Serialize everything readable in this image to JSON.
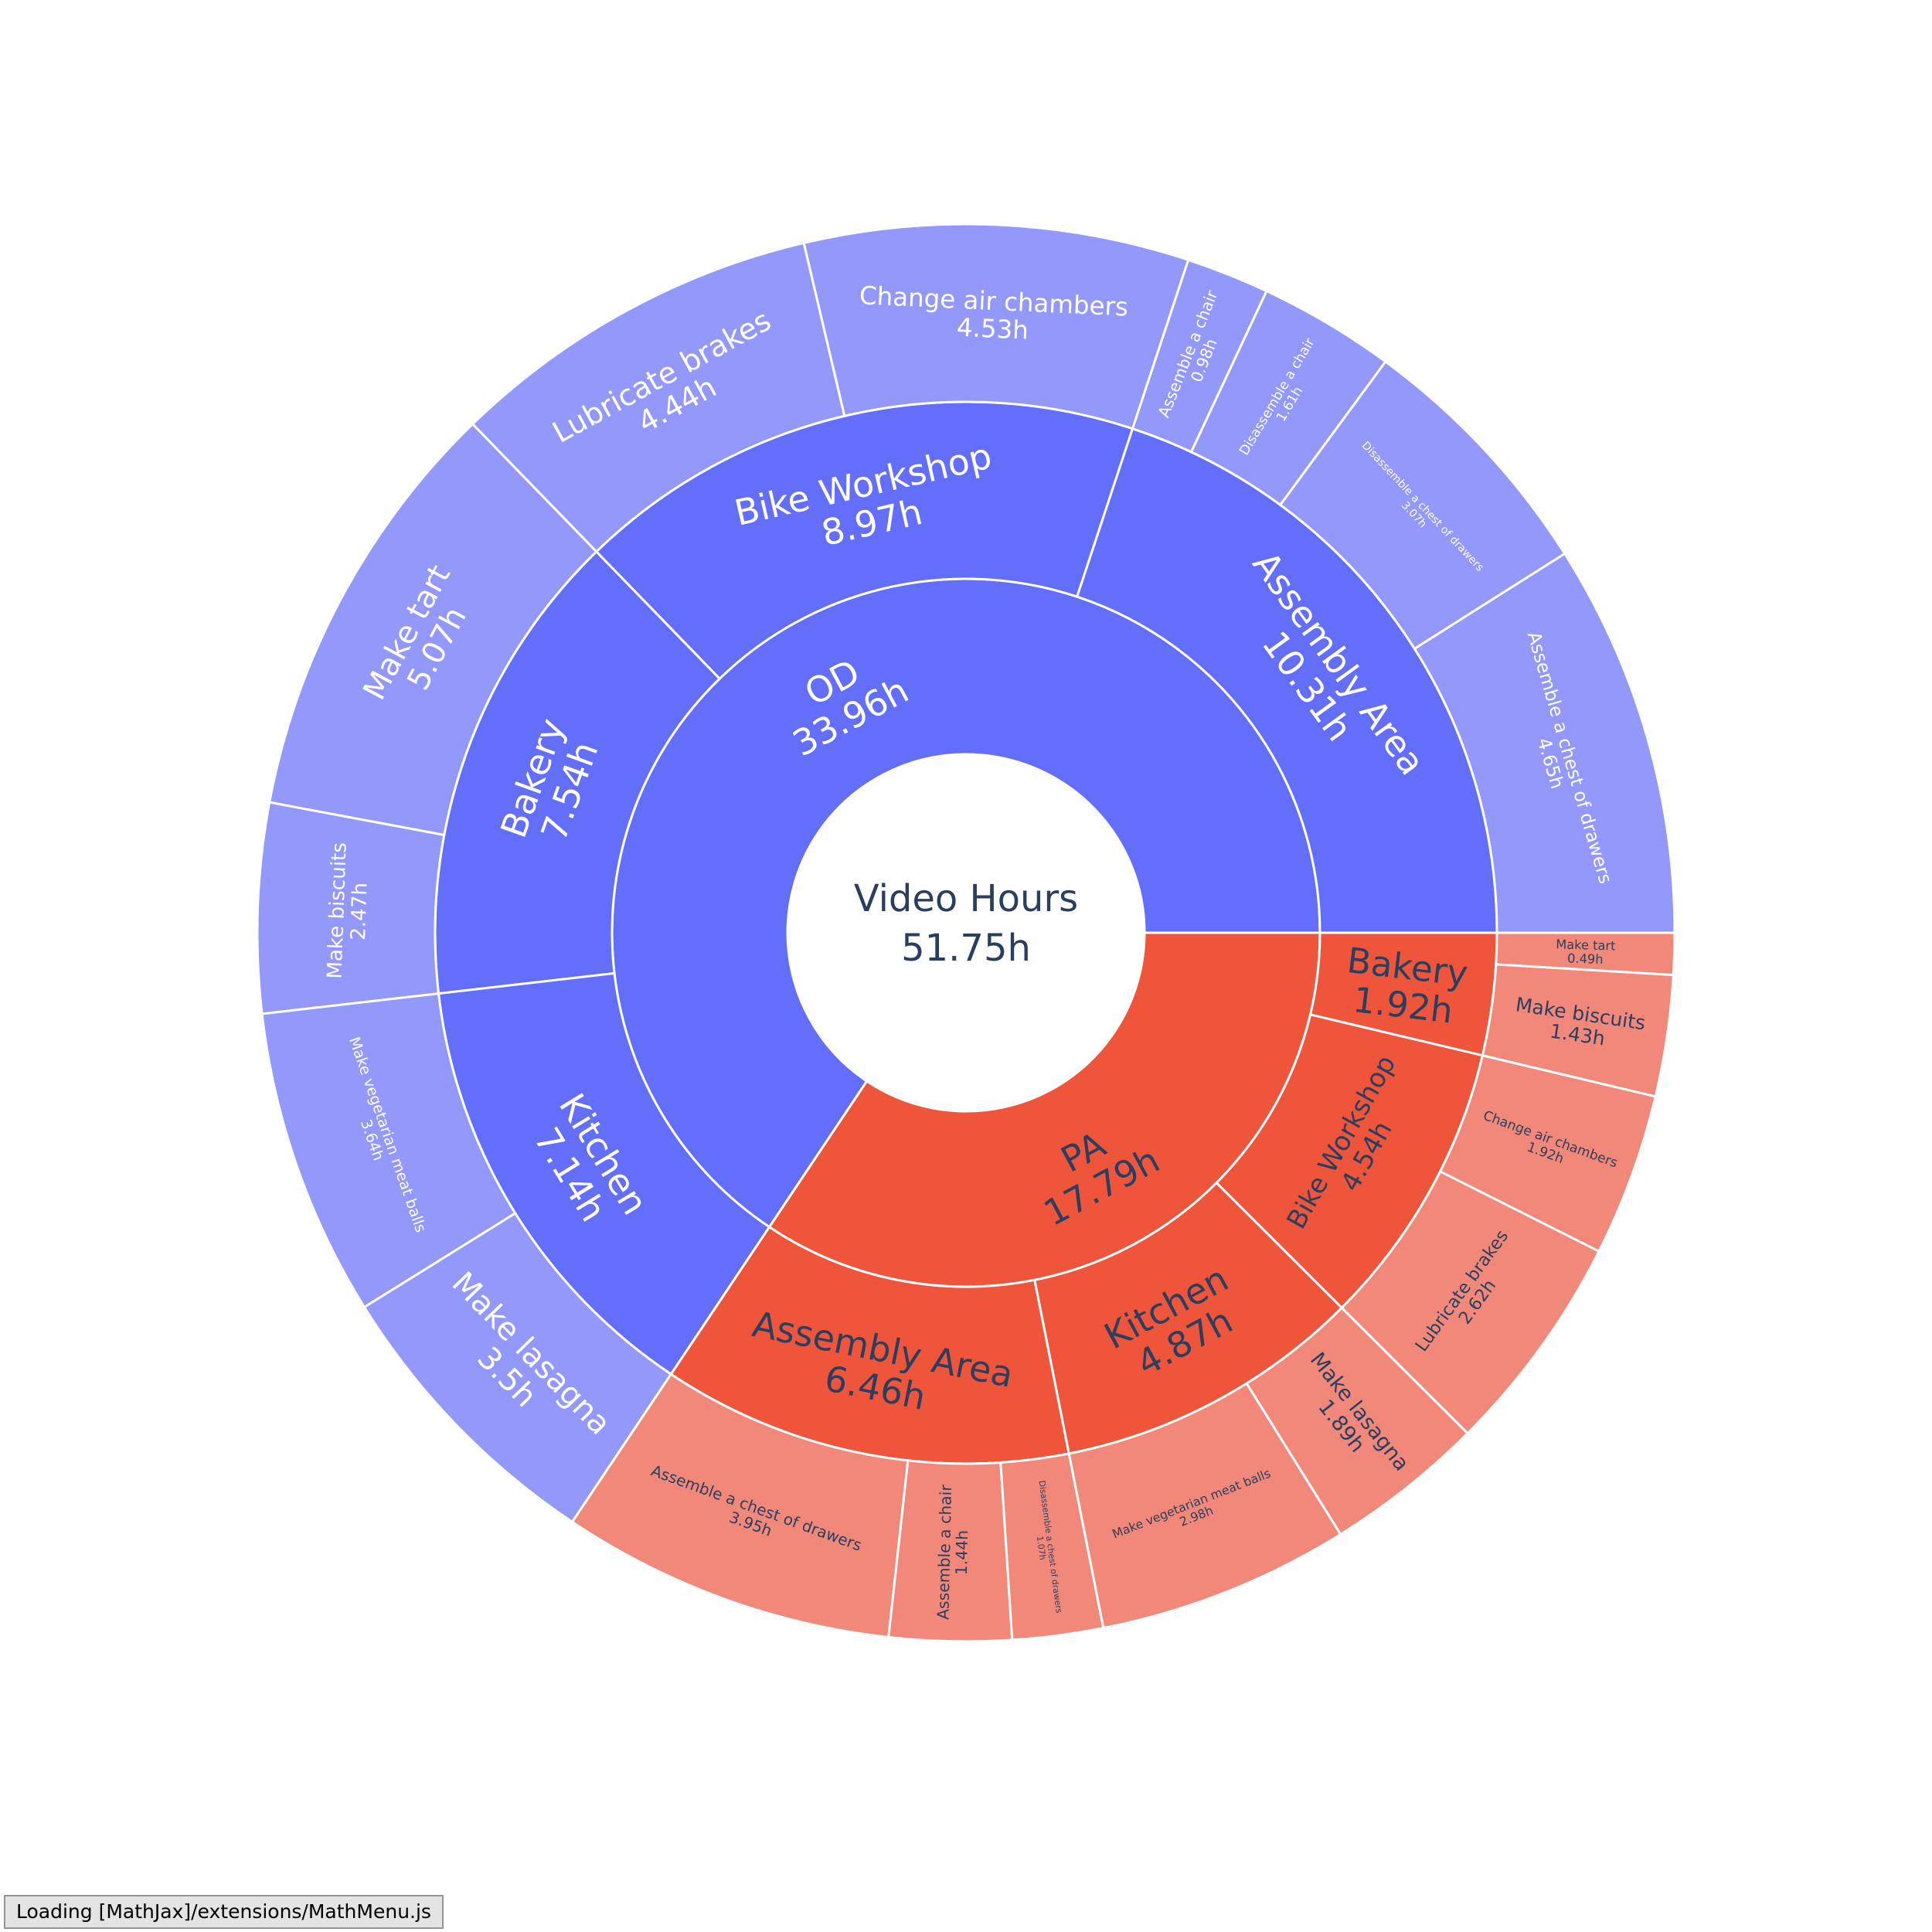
{
  "chart_data": {
    "type": "sunburst",
    "root": {
      "label": "Video Hours",
      "value": 51.75,
      "value_label": "51.75h",
      "children": [
        {
          "label": "OD",
          "value": 33.96,
          "value_label": "33.96h",
          "color": "#636efa",
          "leaf_color": "#9299fb",
          "text_color": "#ffffff",
          "children": [
            {
              "label": "Assembly Area",
              "value": 10.31,
              "value_label": "10.31h",
              "children": [
                {
                  "label": "Assemble a chest of drawers",
                  "value": 4.65,
                  "value_label": "4.65h"
                },
                {
                  "label": "Disassemble a chest of drawers",
                  "value": 3.07,
                  "value_label": "3.07h"
                },
                {
                  "label": "Disassemble a chair",
                  "value": 1.61,
                  "value_label": "1.61h"
                },
                {
                  "label": "Assemble a chair",
                  "value": 0.98,
                  "value_label": "0.98h"
                }
              ]
            },
            {
              "label": "Bike Workshop",
              "value": 8.97,
              "value_label": "8.97h",
              "children": [
                {
                  "label": "Change air chambers",
                  "value": 4.53,
                  "value_label": "4.53h"
                },
                {
                  "label": "Lubricate brakes",
                  "value": 4.44,
                  "value_label": "4.44h"
                }
              ]
            },
            {
              "label": "Bakery",
              "value": 7.54,
              "value_label": "7.54h",
              "children": [
                {
                  "label": "Make tart",
                  "value": 5.07,
                  "value_label": "5.07h"
                },
                {
                  "label": "Make biscuits",
                  "value": 2.47,
                  "value_label": "2.47h"
                }
              ]
            },
            {
              "label": "Kitchen",
              "value": 7.14,
              "value_label": "7.14h",
              "children": [
                {
                  "label": "Make vegetarian meat balls",
                  "value": 3.64,
                  "value_label": "3.64h"
                },
                {
                  "label": "Make lasagna",
                  "value": 3.5,
                  "value_label": "3.5h"
                }
              ]
            }
          ]
        },
        {
          "label": "PA",
          "value": 17.79,
          "value_label": "17.79h",
          "color": "#ef553b",
          "leaf_color": "#f2887a",
          "text_color": "#2a3f5f",
          "children": [
            {
              "label": "Assembly Area",
              "value": 6.46,
              "value_label": "6.46h",
              "children": [
                {
                  "label": "Assemble a chest of drawers",
                  "value": 3.95,
                  "value_label": "3.95h"
                },
                {
                  "label": "Assemble a chair",
                  "value": 1.44,
                  "value_label": "1.44h"
                },
                {
                  "label": "Disassemble a chest of drawers",
                  "value": 1.07,
                  "value_label": "1.07h"
                }
              ]
            },
            {
              "label": "Kitchen",
              "value": 4.87,
              "value_label": "4.87h",
              "children": [
                {
                  "label": "Make vegetarian meat balls",
                  "value": 2.98,
                  "value_label": "2.98h"
                },
                {
                  "label": "Make lasagna",
                  "value": 1.89,
                  "value_label": "1.89h"
                }
              ]
            },
            {
              "label": "Bike Workshop",
              "value": 4.54,
              "value_label": "4.54h",
              "children": [
                {
                  "label": "Lubricate brakes",
                  "value": 2.62,
                  "value_label": "2.62h"
                },
                {
                  "label": "Change air chambers",
                  "value": 1.92,
                  "value_label": "1.92h"
                }
              ]
            },
            {
              "label": "Bakery",
              "value": 1.92,
              "value_label": "1.92h",
              "children": [
                {
                  "label": "Make biscuits",
                  "value": 1.43,
                  "value_label": "1.43h"
                },
                {
                  "label": "Make tart",
                  "value": 0.49,
                  "value_label": "0.49h"
                }
              ]
            }
          ]
        }
      ]
    }
  },
  "status_text": "Loading [MathJax]/extensions/MathMenu.js"
}
